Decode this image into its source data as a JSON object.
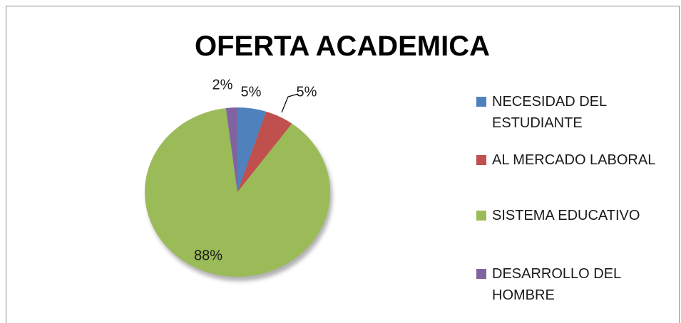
{
  "chart_data": {
    "type": "pie",
    "title": "OFERTA ACADEMICA",
    "categories": [
      "NECESIDAD DEL ESTUDIANTE",
      "AL MERCADO LABORAL",
      "SISTEMA EDUCATIVO",
      "DESARROLLO DEL HOMBRE"
    ],
    "values": [
      5,
      5,
      88,
      2
    ],
    "value_labels": [
      "5%",
      "5%",
      "88%",
      "2%"
    ],
    "colors": [
      "#4f81bd",
      "#c0504d",
      "#9bbb59",
      "#8064a2"
    ],
    "legend": "right"
  }
}
